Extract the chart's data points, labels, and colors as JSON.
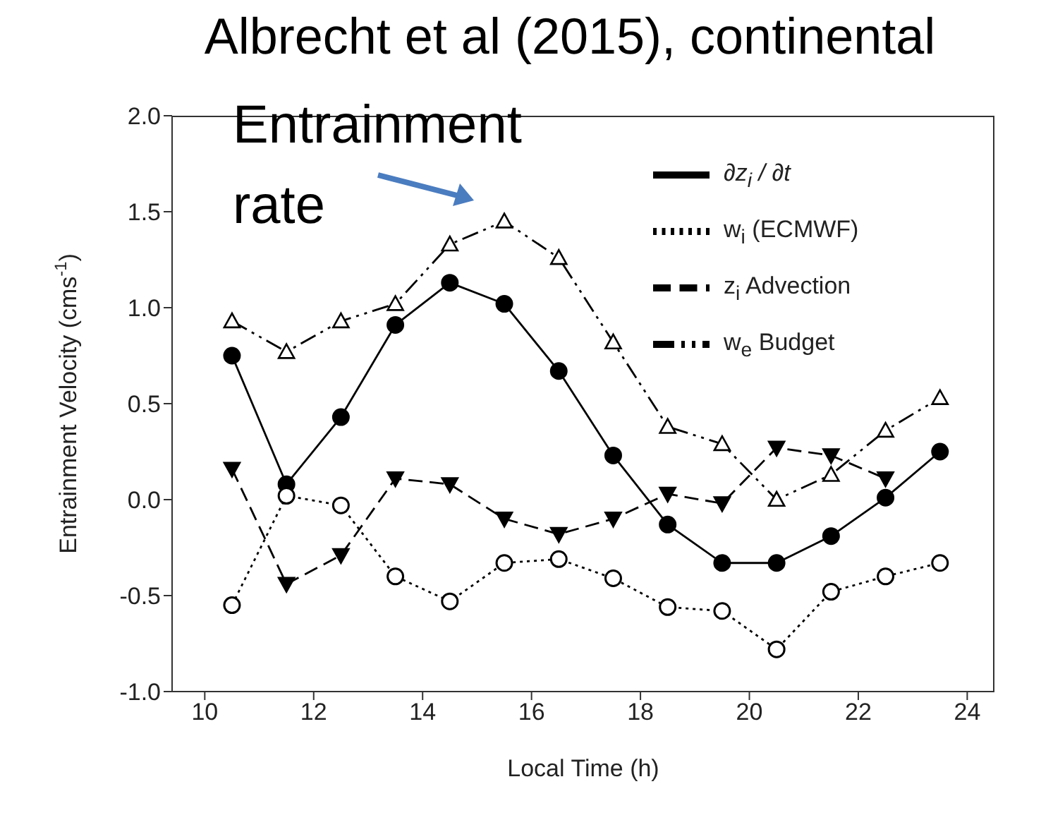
{
  "chart_data": {
    "type": "line",
    "title": "Albrecht et al (2015), continental",
    "xlabel": "Local Time (h)",
    "ylabel": "Entrainment Velocity (cms$^{-1}$)",
    "annotations": [
      "Entrainment rate"
    ],
    "x": [
      10.5,
      11.5,
      12.5,
      13.5,
      14.5,
      15.5,
      16.5,
      17.5,
      18.5,
      19.5,
      20.5,
      21.5,
      22.5,
      23.5
    ],
    "series": [
      {
        "name": "∂z$_{i}$ / ∂t",
        "color": "#000000",
        "marker": "circle",
        "line_style": "solid",
        "values": [
          0.75,
          0.08,
          0.43,
          0.91,
          1.13,
          1.02,
          0.67,
          0.23,
          -0.13,
          -0.33,
          -0.33,
          -0.19,
          0.01,
          0.25
        ]
      },
      {
        "name": "w$_{i}$ (ECMWF)",
        "color": "#000000",
        "marker": "circle-open",
        "line_style": "dotted",
        "values": [
          -0.55,
          0.02,
          -0.03,
          -0.4,
          -0.53,
          -0.33,
          -0.31,
          -0.41,
          -0.56,
          -0.58,
          -0.78,
          -0.48,
          -0.4,
          -0.33
        ]
      },
      {
        "name": "z$_{i}$ Advection",
        "color": "#000000",
        "marker": "triangle-down",
        "line_style": "dashed",
        "values": [
          0.16,
          -0.44,
          -0.29,
          0.11,
          0.08,
          -0.1,
          -0.18,
          -0.1,
          0.03,
          -0.02,
          0.27,
          0.23,
          0.11,
          null
        ]
      },
      {
        "name": "w$_{e}$ Budget",
        "color": "#000000",
        "marker": "triangle-open",
        "line_style": "dashdot",
        "values": [
          0.93,
          0.77,
          0.93,
          1.02,
          1.33,
          1.45,
          1.26,
          0.82,
          0.38,
          0.29,
          0.0,
          0.13,
          0.36,
          0.53
        ]
      }
    ],
    "xlim": [
      9.4,
      24.5
    ],
    "xticks": [
      10,
      12,
      14,
      16,
      18,
      20,
      22,
      24
    ],
    "ylim": [
      -1.0,
      2.0
    ],
    "yticks": [
      {
        "value": -1,
        "label": "-1.0"
      },
      {
        "value": -0.5,
        "label": "-0.5"
      },
      {
        "value": 0,
        "label": "0.0"
      },
      {
        "value": 0.5,
        "label": "0.5"
      },
      {
        "value": 1,
        "label": "1.0"
      },
      {
        "value": 1.5,
        "label": "1.5"
      },
      {
        "value": 2,
        "label": "2.0"
      }
    ],
    "grid": false,
    "legend": "top right"
  }
}
